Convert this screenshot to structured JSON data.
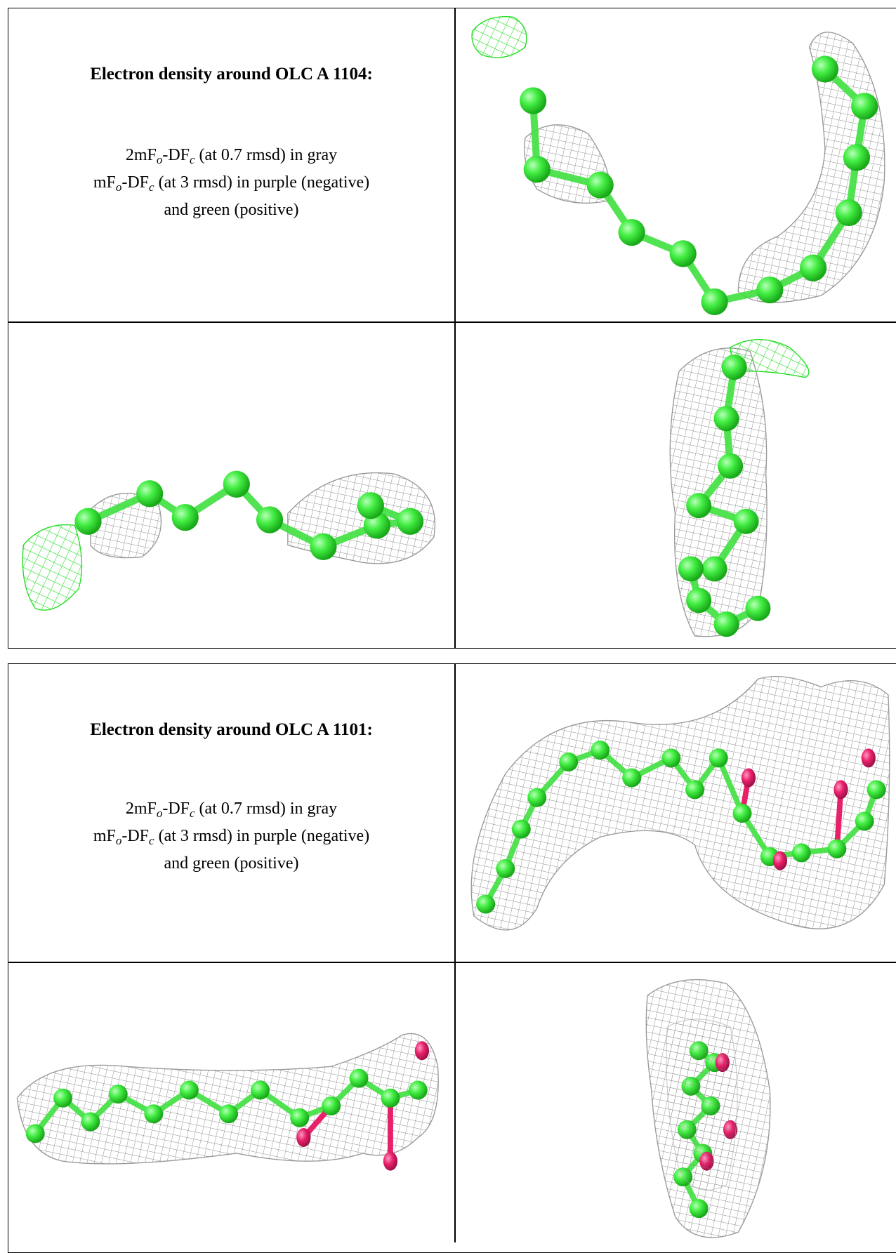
{
  "tables": [
    {
      "title": "Electron density around OLC A 1104:",
      "lines": [
        [
          "2mF",
          "o",
          "-DF",
          "c",
          " (at 0.7 rmsd) in gray"
        ],
        [
          "mF",
          "o",
          "-DF",
          "c",
          " (at 3 rmsd) in purple (negative)"
        ],
        [
          "and green (positive)"
        ]
      ]
    },
    {
      "title": "Electron density around OLC A 1101:",
      "lines": [
        [
          "2mF",
          "o",
          "-DF",
          "c",
          " (at 0.7 rmsd) in gray"
        ],
        [
          "mF",
          "o",
          "-DF",
          "c",
          " (at 3 rmsd) in purple (negative)"
        ],
        [
          "and green (positive)"
        ]
      ]
    }
  ]
}
